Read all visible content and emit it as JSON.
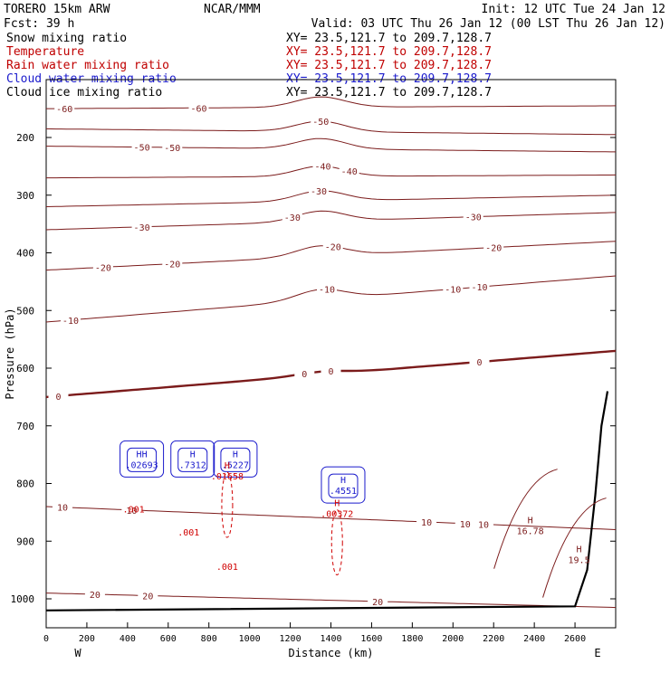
{
  "header": {
    "model": "TORERO  15km ARW",
    "center": "NCAR/MMM",
    "init": "Init: 12 UTC Tue 24 Jan 12",
    "fcst": "Fcst:   39 h",
    "valid": "Valid: 03 UTC Thu 26 Jan 12 (00 LST Thu 26 Jan 12)"
  },
  "fields": [
    {
      "label": "Snow mixing ratio",
      "xy": "XY=  23.5,121.7 to 209.7,128.7",
      "color": "#000000",
      "xy_color": "#000000"
    },
    {
      "label": "Temperature",
      "xy": "XY=  23.5,121.7 to 209.7,128.7",
      "color": "#c00000",
      "xy_color": "#c00000"
    },
    {
      "label": "Rain water mixing ratio",
      "xy": "XY=  23.5,121.7 to 209.7,128.7",
      "color": "#c00000",
      "xy_color": "#c00000"
    },
    {
      "label": "Cloud water mixing ratio",
      "xy": "XY=  23.5,121.7 to 209.7,128.7",
      "color": "#1a1acc",
      "xy_color": "#1a1acc"
    },
    {
      "label": "Cloud ice mixing ratio",
      "xy": "XY=  23.5,121.7 to 209.7,128.7",
      "color": "#000000",
      "xy_color": "#000000"
    }
  ],
  "colors": {
    "temperature": "#7b1b1b",
    "freezing": "#7b1b1b",
    "rain": "#d00000",
    "cloud_water": "#1a1acc",
    "terrain": "#000000"
  },
  "chart_data": {
    "type": "line",
    "title": "",
    "xlabel": "Distance (km)",
    "ylabel": "Pressure (hPa)",
    "xlim": [
      0,
      2800
    ],
    "ylim": [
      1050,
      100
    ],
    "x_ticks": [
      0,
      200,
      400,
      600,
      800,
      1000,
      1200,
      1400,
      1600,
      1800,
      2000,
      2200,
      2400,
      2600
    ],
    "y_ticks": [
      200,
      300,
      400,
      500,
      600,
      700,
      800,
      900,
      1000
    ],
    "x_end_labels": {
      "left": "W",
      "right": "E"
    },
    "temperature_levels_c": [
      {
        "value": -60,
        "p_left": 150,
        "p_right": 145,
        "labels": [
          {
            "text": "-60",
            "x": 90
          },
          {
            "text": "-60",
            "x": 750
          }
        ]
      },
      {
        "value": -50,
        "p_left": 185,
        "p_right": 195,
        "labels": [
          {
            "text": "-50",
            "x": 1350
          }
        ]
      },
      {
        "value": -50,
        "p_left": 215,
        "p_right": 225,
        "labels": [
          {
            "text": "-50",
            "x": 470
          },
          {
            "text": "-50",
            "x": 620
          }
        ]
      },
      {
        "value": -40,
        "p_left": 270,
        "p_right": 265,
        "labels": [
          {
            "text": "-40",
            "x": 1360
          },
          {
            "text": "-40",
            "x": 1490
          }
        ]
      },
      {
        "value": -30,
        "p_left": 320,
        "p_right": 300,
        "labels": [
          {
            "text": "-30",
            "x": 1340
          }
        ]
      },
      {
        "value": -30,
        "p_left": 360,
        "p_right": 330,
        "labels": [
          {
            "text": "-30",
            "x": 470
          },
          {
            "text": "-30",
            "x": 1210
          },
          {
            "text": "-30",
            "x": 2100
          }
        ]
      },
      {
        "value": -20,
        "p_left": 430,
        "p_right": 380,
        "labels": [
          {
            "text": "-20",
            "x": 280
          },
          {
            "text": "-20",
            "x": 620
          },
          {
            "text": "-20",
            "x": 1410
          },
          {
            "text": "-20",
            "x": 2200
          }
        ]
      },
      {
        "value": -10,
        "p_left": 520,
        "p_right": 440,
        "labels": [
          {
            "text": "-10",
            "x": 120
          },
          {
            "text": "-10",
            "x": 1380
          },
          {
            "text": "-10",
            "x": 2000
          },
          {
            "text": "-10",
            "x": 2130
          }
        ]
      },
      {
        "value": 0,
        "p_left": 650,
        "p_right": 570,
        "labels": [
          {
            "text": "0",
            "x": 60
          },
          {
            "text": "0",
            "x": 1270
          },
          {
            "text": "0",
            "x": 1400
          },
          {
            "text": "0",
            "x": 2130
          }
        ]
      },
      {
        "value": 10,
        "p_left": 840,
        "p_right": 880,
        "labels": [
          {
            "text": "10",
            "x": 80
          },
          {
            "text": "10",
            "x": 420
          },
          {
            "text": "10",
            "x": 1870
          },
          {
            "text": "10",
            "x": 2060
          },
          {
            "text": "10",
            "x": 2150
          }
        ]
      },
      {
        "value": 20,
        "p_left": 990,
        "p_right": 1015,
        "labels": [
          {
            "text": "20",
            "x": 240
          },
          {
            "text": "20",
            "x": 500
          },
          {
            "text": "20",
            "x": 1630
          }
        ]
      }
    ],
    "freezing_level_c": 0,
    "terrain_surface_hpa": [
      [
        0,
        1020
      ],
      [
        2600,
        1013
      ],
      [
        2660,
        950
      ],
      [
        2700,
        820
      ],
      [
        2730,
        700
      ],
      [
        2760,
        640
      ]
    ],
    "maxima_labels": [
      {
        "marker": "HH",
        "value": ".02693",
        "x": 470,
        "p": 770,
        "color": "blue"
      },
      {
        "marker": "H",
        "value": ".7312",
        "x": 720,
        "p": 770,
        "color": "blue"
      },
      {
        "marker": "H",
        "value": ".5227",
        "x": 930,
        "p": 770,
        "color": "blue"
      },
      {
        "marker": "H",
        "value": ".01658",
        "x": 890,
        "p": 790,
        "color": "red"
      },
      {
        "marker": "H",
        "value": ".4551",
        "x": 1460,
        "p": 815,
        "color": "blue"
      },
      {
        "marker": "H",
        "value": ".00372",
        "x": 1430,
        "p": 855,
        "color": "red"
      },
      {
        "marker": "H",
        "value": "16.78",
        "x": 2380,
        "p": 885,
        "color": "maroon"
      },
      {
        "marker": "H",
        "value": "19.5",
        "x": 2620,
        "p": 935,
        "color": "maroon"
      }
    ],
    "rain_labels": [
      {
        "text": ".001",
        "x": 430,
        "p": 850
      },
      {
        "text": ".001",
        "x": 700,
        "p": 890
      },
      {
        "text": ".001",
        "x": 890,
        "p": 950
      }
    ]
  }
}
